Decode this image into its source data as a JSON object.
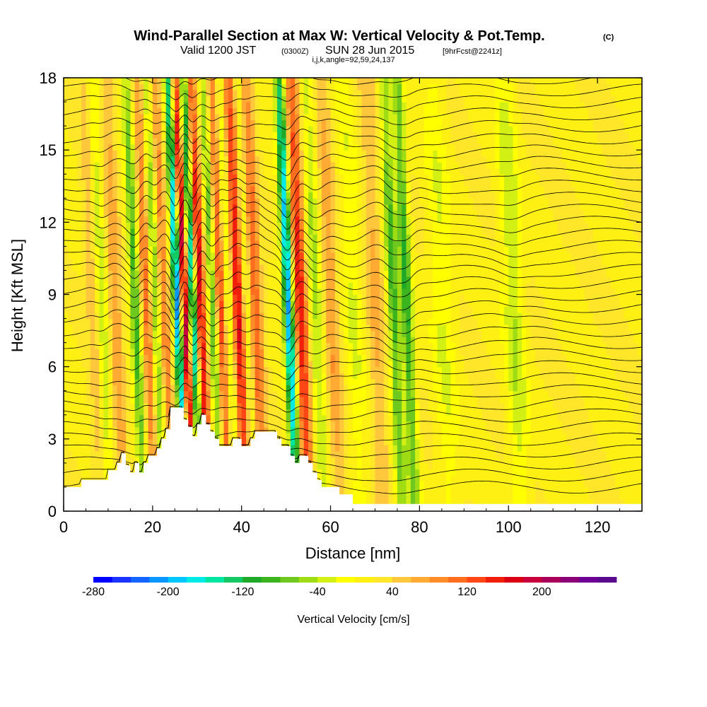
{
  "chart_data": {
    "type": "heatmap",
    "title": "Wind-Parallel Section at Max W: Vertical Velocity & Pot.Temp.",
    "title_badge": "(C)",
    "subtitle": {
      "valid": "Valid 1200 JST",
      "zulu": "(0300Z)",
      "date": "SUN 28 Jun 2015",
      "forecast": "[9hrFcst@2241z]"
    },
    "section_params": "i,j,k,angle=92,59,24,137",
    "xlabel": "Distance [nm]",
    "ylabel": "Height [Kft MSL]",
    "xlim": [
      0,
      130
    ],
    "ylim": [
      0,
      18
    ],
    "x_ticks": [
      0,
      20,
      40,
      60,
      80,
      100,
      120
    ],
    "y_ticks": [
      0,
      3,
      6,
      9,
      12,
      15,
      18
    ],
    "colorbar": {
      "label": "Vertical Velocity [cm/s]",
      "min": -280,
      "max": 280,
      "step": 20,
      "tick_labels": [
        "-280",
        "-200",
        "-120",
        "-40",
        "40",
        "120",
        "200"
      ],
      "tick_values": [
        -280,
        -200,
        -120,
        -40,
        40,
        120,
        200
      ],
      "colors": [
        "#0000ff",
        "#1a33ff",
        "#1464ff",
        "#0a96ff",
        "#00c8ff",
        "#00ebe6",
        "#00e6a0",
        "#14c864",
        "#1eaa28",
        "#3cb41e",
        "#6ec81e",
        "#a0dc14",
        "#d2f014",
        "#ffff00",
        "#fff014",
        "#ffe628",
        "#ffc83c",
        "#ffaa32",
        "#ff8c28",
        "#ff6e1e",
        "#ff4614",
        "#f01e0a",
        "#dc0014",
        "#c8003c",
        "#aa005a",
        "#8c0078",
        "#6e0096",
        "#5a0a8c"
      ]
    },
    "updraft_bands": [
      {
        "x": 6.5,
        "w": 1.4,
        "peak": 40
      },
      {
        "x": 11.5,
        "w": 1.6,
        "peak": 60
      },
      {
        "x": 18.5,
        "w": 1.3,
        "peak": 90
      },
      {
        "x": 22.5,
        "w": 1.2,
        "peak": 80
      },
      {
        "x": 27.0,
        "w": 1.0,
        "peak": 200
      },
      {
        "x": 30.5,
        "w": 1.3,
        "peak": 160
      },
      {
        "x": 35.0,
        "w": 1.6,
        "peak": 130
      },
      {
        "x": 39.0,
        "w": 1.6,
        "peak": 150
      },
      {
        "x": 43.0,
        "w": 1.5,
        "peak": 100
      },
      {
        "x": 53.0,
        "w": 1.8,
        "peak": 140
      },
      {
        "x": 60.0,
        "w": 1.8,
        "peak": 60
      },
      {
        "x": 70.0,
        "w": 2.0,
        "peak": 50
      }
    ],
    "downdraft_bands": [
      {
        "x": 8.5,
        "w": 1.3,
        "peak": -60
      },
      {
        "x": 16.0,
        "w": 1.2,
        "peak": -110
      },
      {
        "x": 20.5,
        "w": 1.0,
        "peak": -90
      },
      {
        "x": 25.5,
        "w": 1.0,
        "peak": -240
      },
      {
        "x": 29.0,
        "w": 0.9,
        "peak": -220
      },
      {
        "x": 33.5,
        "w": 1.1,
        "peak": -140
      },
      {
        "x": 37.0,
        "w": 1.2,
        "peak": -90
      },
      {
        "x": 41.0,
        "w": 1.0,
        "peak": -60
      },
      {
        "x": 50.5,
        "w": 1.2,
        "peak": -240
      },
      {
        "x": 56.5,
        "w": 1.6,
        "peak": -70
      },
      {
        "x": 65.0,
        "w": 2.0,
        "peak": -40
      },
      {
        "x": 74.0,
        "w": 1.3,
        "peak": -110
      },
      {
        "x": 77.0,
        "w": 1.3,
        "peak": -120
      },
      {
        "x": 85.0,
        "w": 2.5,
        "peak": -40
      },
      {
        "x": 101.0,
        "w": 2.2,
        "peak": -60
      }
    ],
    "terrain_profile": [
      [
        0,
        1.0
      ],
      [
        4,
        1.0
      ],
      [
        4,
        1.3
      ],
      [
        10,
        1.3
      ],
      [
        10,
        1.7
      ],
      [
        12,
        1.7
      ],
      [
        12,
        2.0
      ],
      [
        13,
        2.0
      ],
      [
        13,
        2.4
      ],
      [
        14,
        2.4
      ],
      [
        14,
        1.9
      ],
      [
        15,
        1.9
      ],
      [
        15,
        1.6
      ],
      [
        16,
        1.6
      ],
      [
        16,
        2.0
      ],
      [
        17,
        2.0
      ],
      [
        17,
        1.6
      ],
      [
        18,
        1.6
      ],
      [
        18,
        2.0
      ],
      [
        19,
        2.0
      ],
      [
        19,
        2.3
      ],
      [
        21,
        2.3
      ],
      [
        21,
        2.6
      ],
      [
        22,
        2.6
      ],
      [
        22,
        3.0
      ],
      [
        23,
        3.0
      ],
      [
        23,
        3.4
      ],
      [
        24,
        3.4
      ],
      [
        24,
        4.3
      ],
      [
        27,
        4.3
      ],
      [
        27,
        3.8
      ],
      [
        28,
        3.8
      ],
      [
        28,
        3.5
      ],
      [
        29,
        3.5
      ],
      [
        29,
        3.1
      ],
      [
        30,
        3.1
      ],
      [
        30,
        3.6
      ],
      [
        31,
        3.6
      ],
      [
        31,
        4.0
      ],
      [
        32,
        4.0
      ],
      [
        32,
        3.6
      ],
      [
        33,
        3.6
      ],
      [
        33,
        3.3
      ],
      [
        34,
        3.3
      ],
      [
        34,
        3.0
      ],
      [
        35,
        3.0
      ],
      [
        35,
        2.7
      ],
      [
        38,
        2.7
      ],
      [
        38,
        3.0
      ],
      [
        40,
        3.0
      ],
      [
        40,
        2.7
      ],
      [
        42,
        2.7
      ],
      [
        42,
        3.0
      ],
      [
        43,
        3.0
      ],
      [
        43,
        3.3
      ],
      [
        48,
        3.3
      ],
      [
        48,
        3.0
      ],
      [
        49,
        3.0
      ],
      [
        49,
        2.7
      ],
      [
        51,
        2.7
      ],
      [
        51,
        2.3
      ],
      [
        52,
        2.3
      ],
      [
        52,
        2.0
      ],
      [
        53,
        2.0
      ],
      [
        53,
        2.3
      ],
      [
        55,
        2.3
      ],
      [
        55,
        2.0
      ],
      [
        56,
        2.0
      ],
      [
        56,
        1.6
      ],
      [
        57,
        1.6
      ],
      [
        57,
        1.3
      ],
      [
        58,
        1.3
      ],
      [
        58,
        1.0
      ],
      [
        62,
        1.0
      ],
      [
        62,
        0.7
      ],
      [
        65,
        0.7
      ],
      [
        65,
        0.3
      ],
      [
        68,
        0.3
      ],
      [
        68,
        0.0
      ]
    ],
    "data_floor_km_ft": 0.3
  }
}
